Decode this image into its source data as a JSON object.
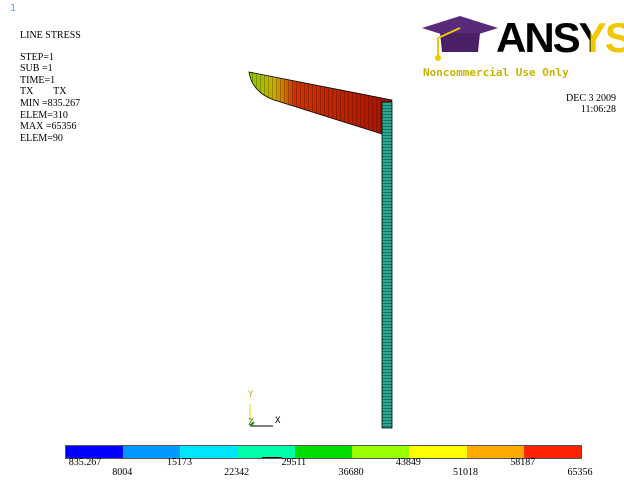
{
  "window": {
    "number": "1"
  },
  "plot_info": {
    "title": "LINE STRESS",
    "step": "STEP=1",
    "sub": "SUB =1",
    "time": "TIME=1",
    "items": "TX        TX",
    "min": "MIN =835.267",
    "elem_min": "ELEM=310",
    "max": "MAX =65356",
    "elem_max": "ELEM=90"
  },
  "logo": {
    "brand": "ANSYS",
    "license_note": "Noncommercial Use Only"
  },
  "timestamp": {
    "date": "DEC  3 2009",
    "time": "11:06:28"
  },
  "triad": {
    "y_label": "Y",
    "z_label": "Z",
    "x_label": "X"
  },
  "legend": {
    "colors": [
      "#0000ff",
      "#0099ff",
      "#00e5ff",
      "#00ffaa",
      "#00dd00",
      "#99ff00",
      "#ffff00",
      "#ffaa00",
      "#ff2200"
    ],
    "labels_top": [
      "835.267",
      "15173",
      "29511",
      "43849",
      "58187"
    ],
    "labels_bottom": [
      "8004",
      "22342",
      "36680",
      "51018",
      "65356"
    ]
  }
}
